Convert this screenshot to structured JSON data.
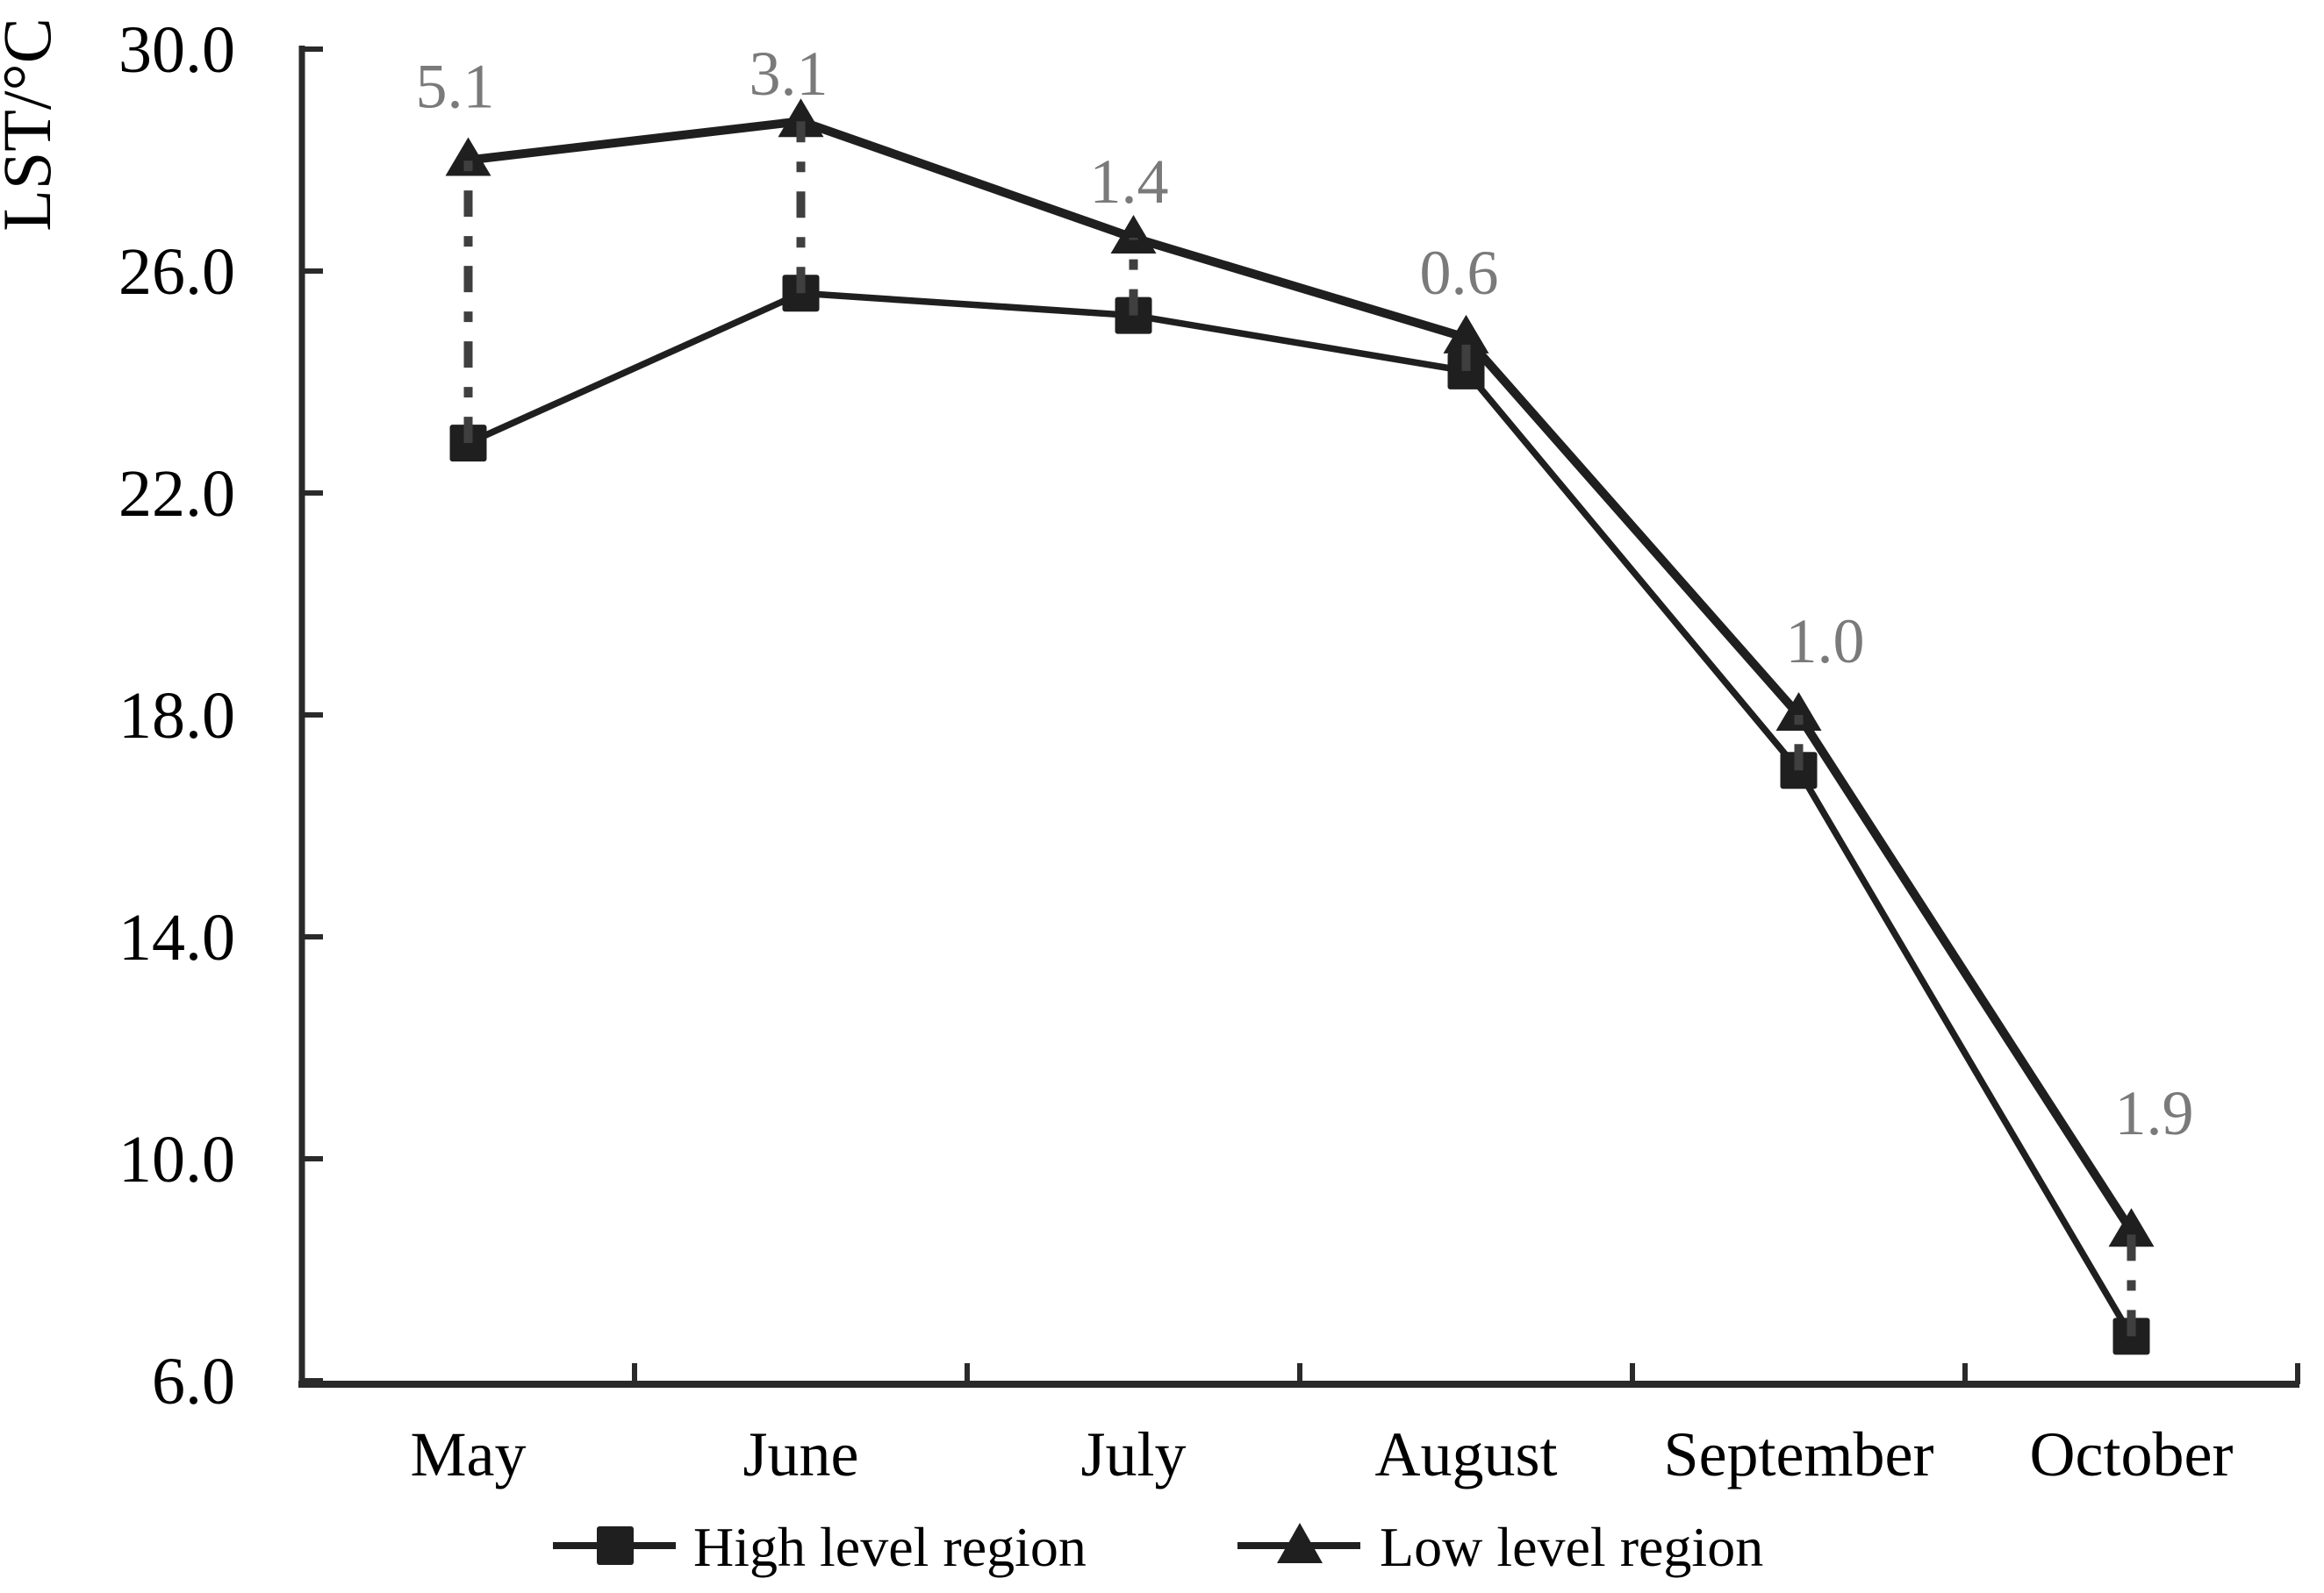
{
  "chart_data": {
    "type": "line",
    "title": "",
    "ylabel": "LST/°C",
    "xlabel": "",
    "ylim": [
      6.0,
      30.0
    ],
    "ytick_step": 4.0,
    "yticks": [
      30,
      26,
      22,
      18,
      14,
      10,
      6
    ],
    "ytick_labels": [
      "30.0",
      "26.0",
      "22.0",
      "18.0",
      "14.0",
      "10.0",
      "6.0"
    ],
    "categories": [
      "May",
      "June",
      "July",
      "August",
      "September",
      "October"
    ],
    "series": [
      {
        "name": "High level region",
        "marker": "square",
        "values": [
          22.9,
          25.6,
          25.2,
          24.2,
          17.0,
          6.8
        ]
      },
      {
        "name": "Low level region",
        "marker": "triangle",
        "values": [
          28.0,
          28.7,
          26.6,
          24.8,
          18.0,
          8.7
        ]
      }
    ],
    "difference_labels": [
      {
        "category": "May",
        "text": "5.1"
      },
      {
        "category": "June",
        "text": "3.1"
      },
      {
        "category": "July",
        "text": "1.4"
      },
      {
        "category": "August",
        "text": "0.6"
      },
      {
        "category": "September",
        "text": "1.0"
      },
      {
        "category": "October",
        "text": "1.9"
      }
    ],
    "legend_position": "bottom",
    "grid": false,
    "colors": {
      "series": "#1f1f1f",
      "axis": "#2a2a2a",
      "connector": "#3f3f3f",
      "difference_label": "#7a7a7a",
      "text": "#000000",
      "background": "#ffffff"
    }
  }
}
